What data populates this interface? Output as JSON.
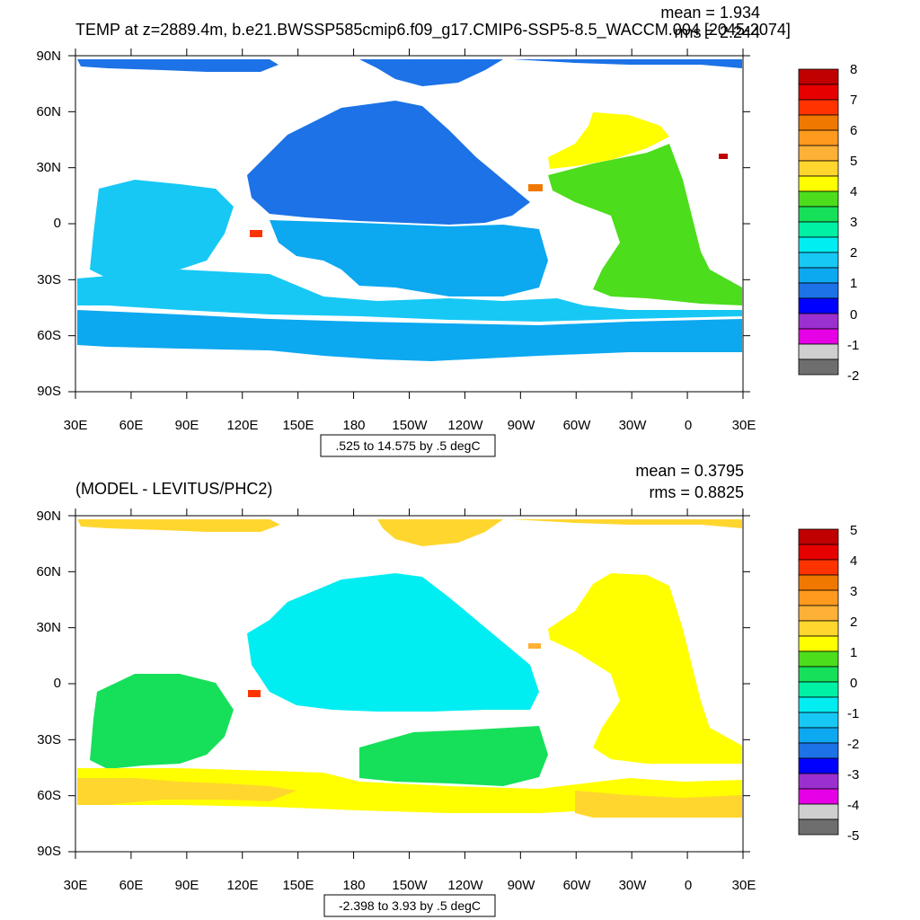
{
  "colors": {
    "top_levels": [
      "#6e6e6e",
      "#cfcfcf",
      "#e500e5",
      "#9b30d0",
      "#0000ff",
      "#1c72e6",
      "#0ca8f0",
      "#17c8f5",
      "#00eef2",
      "#00f0a4",
      "#16e05a",
      "#4cdd1c",
      "#ffff00",
      "#ffd62e",
      "#ffb036",
      "#ff9a1e",
      "#f07800",
      "#ff3300",
      "#e60000",
      "#c00000"
    ],
    "bottom_levels": [
      "#6e6e6e",
      "#cfcfcf",
      "#e500e5",
      "#9b30d0",
      "#0000ff",
      "#1c72e6",
      "#0ca8f0",
      "#17c8f5",
      "#00eef2",
      "#00f0a4",
      "#16e05a",
      "#4cdd1c",
      "#ffff00",
      "#ffd62e",
      "#ffb036",
      "#ff9a1e",
      "#f07800",
      "#ff3300",
      "#e60000",
      "#c00000"
    ]
  },
  "x_ticks": [
    "30E",
    "60E",
    "90E",
    "120E",
    "150E",
    "180",
    "150W",
    "120W",
    "90W",
    "60W",
    "30W",
    "0",
    "30E"
  ],
  "y_ticks": [
    "90N",
    "60N",
    "30N",
    "0",
    "30S",
    "60S",
    "90S"
  ],
  "top_panel": {
    "title": "TEMP at z=2889.4m, b.e21.BWSSP585cmip6.f09_g17.CMIP6-SSP5-8.5_WACCM.004 [2045-2074]",
    "mean": "mean = 1.934",
    "rms": "rms = 2.244",
    "range": ".525 to 14.575 by .5 degC",
    "colorbar_labels": [
      "8",
      "7",
      "6",
      "5",
      "4",
      "3",
      "2",
      "1",
      "0",
      "-1",
      "-2"
    ]
  },
  "bottom_panel": {
    "title": "(MODEL - LEVITUS/PHC2)",
    "mean": "mean = 0.3795",
    "rms": "rms = 0.8825",
    "range": "-2.398 to 3.93 by .5 degC",
    "colorbar_labels": [
      "5",
      "4",
      "3",
      "2",
      "1",
      "0",
      "-1",
      "-2",
      "-3",
      "-4",
      "-5"
    ]
  }
}
